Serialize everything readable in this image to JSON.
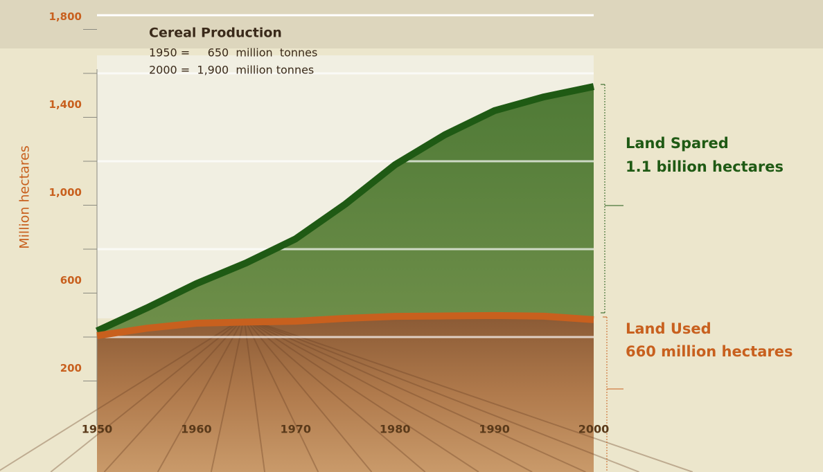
{
  "chart_data": {
    "type": "line",
    "title": "Cereal Production",
    "subtitle_lines": [
      "1950 =     650  million  tonnes",
      "2000 =  1,900  million tonnes"
    ],
    "y_label": "Million hectares",
    "x": [
      1950,
      1955,
      1960,
      1965,
      1970,
      1975,
      1980,
      1985,
      1990,
      1995,
      2000
    ],
    "xlim": [
      1950,
      2000
    ],
    "xticks": [
      1950,
      1960,
      1970,
      1980,
      1990,
      2000
    ],
    "ylim": [
      0,
      1800
    ],
    "yticks": [
      200,
      600,
      {
        "value": 1000,
        "label": "1,000"
      },
      {
        "value": 1400,
        "label": "1,400"
      },
      {
        "value": 1800,
        "label": "1,800"
      }
    ],
    "minor_yticks": [
      400,
      800,
      1200,
      1600
    ],
    "series": [
      {
        "name": "Land Spared",
        "color": "#1f5a14",
        "values": [
          428,
          532,
          643,
          737,
          847,
          1005,
          1184,
          1320,
          1430,
          1493,
          1540
        ]
      },
      {
        "name": "Land Used",
        "color": "#c8601e",
        "values": [
          406,
          440,
          463,
          468,
          472,
          485,
          494,
          496,
          498,
          495,
          479
        ]
      }
    ],
    "annotations": [
      {
        "lines": [
          "Land Spared",
          "1.1 billion hectares"
        ],
        "color": "#1f5a14"
      },
      {
        "lines": [
          "Land Used",
          "660 million hectares"
        ],
        "color": "#c8601e"
      }
    ]
  }
}
